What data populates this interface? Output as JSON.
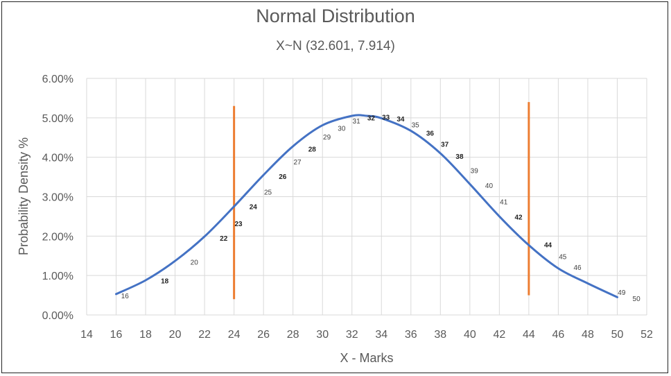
{
  "chart_data": {
    "type": "line",
    "title": "Normal Distribution",
    "subtitle": "X~N (32.601, 7.914)",
    "xlabel": "X - Marks",
    "ylabel": "Probability Density %",
    "xlim": [
      14,
      52
    ],
    "ylim": [
      0,
      0.06
    ],
    "x_ticks": [
      "14",
      "16",
      "18",
      "20",
      "22",
      "24",
      "26",
      "28",
      "30",
      "32",
      "34",
      "36",
      "38",
      "40",
      "42",
      "44",
      "46",
      "48",
      "50",
      "52"
    ],
    "y_ticks": [
      "0.00%",
      "1.00%",
      "2.00%",
      "3.00%",
      "4.00%",
      "5.00%",
      "6.00%"
    ],
    "grid": true,
    "series": [
      {
        "name": "Probability Density",
        "color": "#4472C4",
        "x": [
          16,
          18,
          20,
          22,
          24,
          26,
          28,
          30,
          32,
          33,
          34,
          36,
          38,
          40,
          42,
          44,
          46,
          48,
          50
        ],
        "y": [
          0.0053,
          0.0088,
          0.0137,
          0.0199,
          0.0275,
          0.0355,
          0.0428,
          0.0481,
          0.0505,
          0.0505,
          0.0499,
          0.0467,
          0.041,
          0.0332,
          0.025,
          0.0177,
          0.0118,
          0.008,
          0.0045
        ]
      }
    ],
    "vertical_lines": [
      {
        "x": 24,
        "y_top": 0.053,
        "y_bottom": 0.004,
        "color": "#ED7D31"
      },
      {
        "x": 44,
        "y_top": 0.054,
        "y_bottom": 0.005,
        "color": "#ED7D31"
      }
    ],
    "data_labels": [
      {
        "text": "16",
        "x": 16.6,
        "y": 0.0049,
        "bold": false
      },
      {
        "text": "18",
        "x": 19.3,
        "y": 0.0087,
        "bold": true
      },
      {
        "text": "20",
        "x": 21.3,
        "y": 0.0135,
        "bold": false
      },
      {
        "text": "22",
        "x": 23.3,
        "y": 0.0195,
        "bold": true
      },
      {
        "text": "23",
        "x": 24.3,
        "y": 0.0232,
        "bold": true
      },
      {
        "text": "24",
        "x": 25.3,
        "y": 0.0275,
        "bold": true
      },
      {
        "text": "25",
        "x": 26.3,
        "y": 0.0312,
        "bold": false
      },
      {
        "text": "26",
        "x": 27.3,
        "y": 0.0352,
        "bold": true
      },
      {
        "text": "27",
        "x": 28.3,
        "y": 0.0389,
        "bold": false
      },
      {
        "text": "28",
        "x": 29.3,
        "y": 0.0421,
        "bold": true
      },
      {
        "text": "29",
        "x": 30.3,
        "y": 0.0452,
        "bold": false
      },
      {
        "text": "30",
        "x": 31.3,
        "y": 0.0474,
        "bold": false
      },
      {
        "text": "31",
        "x": 32.3,
        "y": 0.0493,
        "bold": false
      },
      {
        "text": "32",
        "x": 33.3,
        "y": 0.0501,
        "bold": true
      },
      {
        "text": "33",
        "x": 34.3,
        "y": 0.0502,
        "bold": true
      },
      {
        "text": "34",
        "x": 35.3,
        "y": 0.0498,
        "bold": true
      },
      {
        "text": "35",
        "x": 36.3,
        "y": 0.0483,
        "bold": false
      },
      {
        "text": "36",
        "x": 37.3,
        "y": 0.0462,
        "bold": true
      },
      {
        "text": "37",
        "x": 38.3,
        "y": 0.0434,
        "bold": true
      },
      {
        "text": "38",
        "x": 39.3,
        "y": 0.0403,
        "bold": true
      },
      {
        "text": "39",
        "x": 40.3,
        "y": 0.0367,
        "bold": false
      },
      {
        "text": "40",
        "x": 41.3,
        "y": 0.0329,
        "bold": false
      },
      {
        "text": "41",
        "x": 42.3,
        "y": 0.0288,
        "bold": false
      },
      {
        "text": "42",
        "x": 43.3,
        "y": 0.0249,
        "bold": true
      },
      {
        "text": "44",
        "x": 45.3,
        "y": 0.0179,
        "bold": true
      },
      {
        "text": "45",
        "x": 46.3,
        "y": 0.0149,
        "bold": false
      },
      {
        "text": "46",
        "x": 47.3,
        "y": 0.0121,
        "bold": false
      },
      {
        "text": "49",
        "x": 50.3,
        "y": 0.0058,
        "bold": false
      },
      {
        "text": "50",
        "x": 51.3,
        "y": 0.0042,
        "bold": false
      }
    ]
  }
}
